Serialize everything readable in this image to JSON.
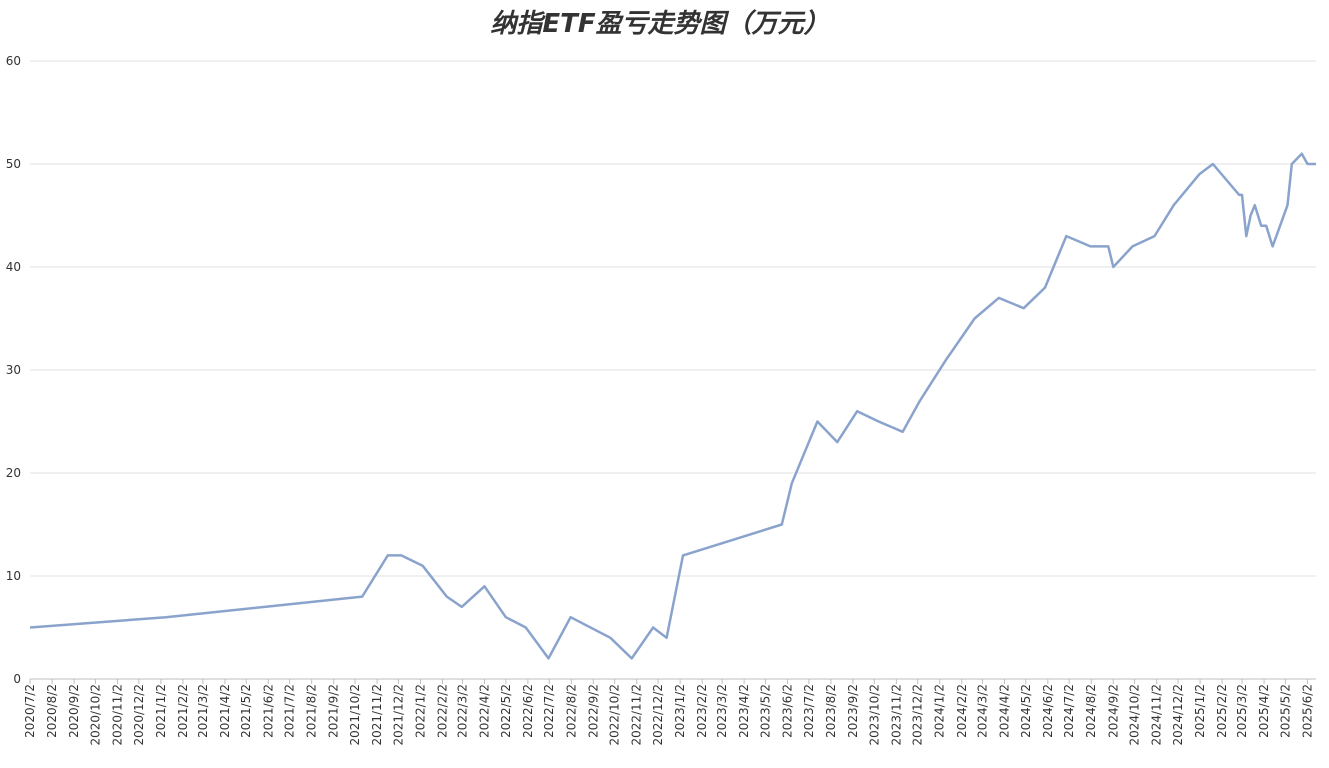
{
  "chart_data": {
    "type": "line",
    "title": "纳指ETF盈亏走势图（万元）",
    "xlim": [
      "2020/7/2",
      "2025/6/14"
    ],
    "xticks": [
      "2020/7/2",
      "2020/8/2",
      "2020/9/2",
      "2020/10/2",
      "2020/11/2",
      "2020/12/2",
      "2021/1/2",
      "2021/2/2",
      "2021/3/2",
      "2021/4/2",
      "2021/5/2",
      "2021/6/2",
      "2021/7/2",
      "2021/8/2",
      "2021/9/2",
      "2021/10/2",
      "2021/11/2",
      "2021/12/2",
      "2022/1/2",
      "2022/2/2",
      "2022/3/2",
      "2022/4/2",
      "2022/5/2",
      "2022/6/2",
      "2022/7/2",
      "2022/8/2",
      "2022/9/2",
      "2022/10/2",
      "2022/11/2",
      "2022/12/2",
      "2023/1/2",
      "2023/2/2",
      "2023/3/2",
      "2023/4/2",
      "2023/5/2",
      "2023/6/2",
      "2023/7/2",
      "2023/8/2",
      "2023/9/2",
      "2023/10/2",
      "2023/11/2",
      "2023/12/2",
      "2024/1/2",
      "2024/2/2",
      "2024/3/2",
      "2024/4/2",
      "2024/5/2",
      "2024/6/2",
      "2024/7/2",
      "2024/8/2",
      "2024/9/2",
      "2024/10/2",
      "2024/11/2",
      "2024/12/2",
      "2025/1/2",
      "2025/2/2",
      "2025/3/2",
      "2025/4/2",
      "2025/5/2",
      "2025/6/2"
    ],
    "ylim": [
      0,
      60
    ],
    "yticks": [
      0,
      10,
      20,
      30,
      40,
      50,
      60
    ],
    "grid": true,
    "x": [
      "2020/7/2",
      "2021/1/9",
      "2021/10/12",
      "2021/11/17",
      "2021/12/6",
      "2022/1/5",
      "2022/2/8",
      "2022/3/1",
      "2022/4/2",
      "2022/5/2",
      "2022/5/30",
      "2022/7/1",
      "2022/8/1",
      "2022/9/26",
      "2022/10/26",
      "2022/11/25",
      "2022/12/14",
      "2023/1/6",
      "2023/5/25",
      "2023/6/8",
      "2023/7/14",
      "2023/8/11",
      "2023/9/8",
      "2023/10/8",
      "2023/11/11",
      "2023/12/5",
      "2024/1/11",
      "2024/2/20",
      "2024/3/25",
      "2024/4/29",
      "2024/5/29",
      "2024/6/28",
      "2024/8/1",
      "2024/8/26",
      "2024/9/2",
      "2024/9/29",
      "2024/10/30",
      "2024/11/26",
      "2025/1/1",
      "2025/1/20",
      "2025/2/26",
      "2025/3/2",
      "2025/3/8",
      "2025/3/14",
      "2025/3/20",
      "2025/3/29",
      "2025/4/5",
      "2025/4/14",
      "2025/5/5",
      "2025/5/11",
      "2025/5/25",
      "2025/6/2",
      "2025/6/14"
    ],
    "series": [
      {
        "color": "#8aa3cc",
        "values": [
          5,
          6,
          8,
          12,
          12,
          11,
          8,
          7,
          9,
          6,
          5,
          2,
          6,
          4,
          2,
          5,
          4,
          12,
          15,
          19,
          25,
          23,
          26,
          25,
          24,
          27,
          31,
          35,
          37,
          36,
          38,
          43,
          42,
          42,
          40,
          42,
          43,
          46,
          49,
          50,
          47,
          47,
          43,
          45,
          46,
          44,
          44,
          42,
          46,
          50,
          51,
          50,
          50
        ]
      }
    ]
  }
}
